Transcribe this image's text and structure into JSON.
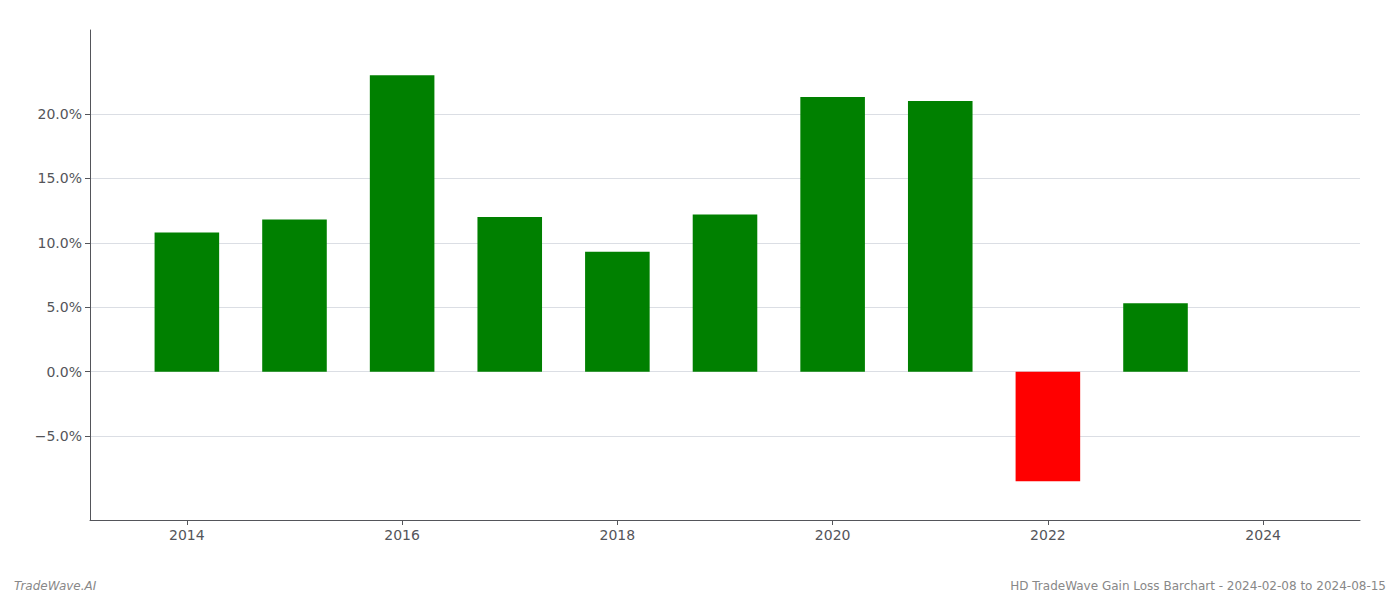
{
  "chart_data": {
    "type": "bar",
    "x": [
      2014,
      2015,
      2016,
      2017,
      2018,
      2019,
      2020,
      2021,
      2022,
      2023
    ],
    "values": [
      0.108,
      0.118,
      0.23,
      0.12,
      0.093,
      0.122,
      0.213,
      0.21,
      -0.085,
      0.053
    ],
    "colors": [
      "#008000",
      "#008000",
      "#008000",
      "#008000",
      "#008000",
      "#008000",
      "#008000",
      "#008000",
      "#ff0000",
      "#008000"
    ],
    "xlim": [
      2013.1,
      2024.9
    ],
    "xticks": [
      2014,
      2016,
      2018,
      2020,
      2022,
      2024
    ],
    "ylim": [
      -0.115,
      0.265
    ],
    "yticks": [
      {
        "value": -0.05,
        "label": "−5.0%"
      },
      {
        "value": 0.0,
        "label": "0.0%"
      },
      {
        "value": 0.05,
        "label": "5.0%"
      },
      {
        "value": 0.1,
        "label": "10.0%"
      },
      {
        "value": 0.15,
        "label": "15.0%"
      },
      {
        "value": 0.2,
        "label": "20.0%"
      }
    ],
    "grid": true,
    "annotations": [
      "TradeWave.AI",
      "HD TradeWave Gain Loss Barchart - 2024-02-08 to 2024-08-15"
    ]
  }
}
